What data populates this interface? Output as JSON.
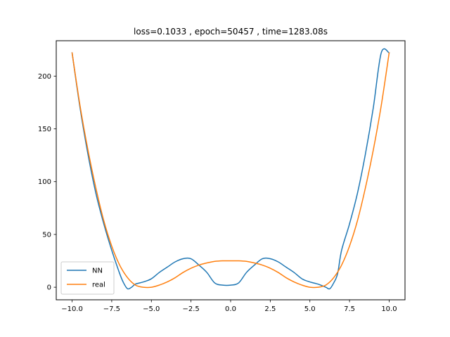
{
  "chart_data": {
    "type": "line",
    "title": "loss=0.1033 , epoch=50457 , time=1283.08s",
    "xlabel": "",
    "ylabel": "",
    "xlim": [
      -11.0,
      11.0
    ],
    "ylim": [
      -11.9,
      233.5
    ],
    "xticks": [
      -10.0,
      -7.5,
      -5.0,
      -2.5,
      0.0,
      2.5,
      5.0,
      7.5,
      10.0
    ],
    "xtick_labels": [
      "−10.0",
      "−7.5",
      "−5.0",
      "−2.5",
      "0.0",
      "2.5",
      "5.0",
      "7.5",
      "10.0"
    ],
    "yticks": [
      0,
      50,
      100,
      150,
      200
    ],
    "ytick_labels": [
      "0",
      "50",
      "100",
      "150",
      "200"
    ],
    "grid": false,
    "legend_position": "lower-left",
    "series": [
      {
        "name": "NN",
        "color": "#1f77b4",
        "x": [
          -10.0,
          -9.5,
          -9.0,
          -8.5,
          -8.0,
          -7.5,
          -7.0,
          -6.75,
          -6.5,
          -6.25,
          -6.0,
          -5.5,
          -5.0,
          -4.5,
          -4.0,
          -3.5,
          -3.0,
          -2.5,
          -2.0,
          -1.5,
          -1.0,
          -0.5,
          0.0,
          0.5,
          1.0,
          1.5,
          2.0,
          2.5,
          3.0,
          3.5,
          4.0,
          4.5,
          5.0,
          5.5,
          6.0,
          6.25,
          6.5,
          6.75,
          7.0,
          7.5,
          8.0,
          8.5,
          9.0,
          9.5,
          10.0
        ],
        "y": [
          222,
          170,
          126,
          89,
          60,
          35,
          13,
          4,
          -1.5,
          0,
          3,
          5,
          8,
          14,
          19,
          24,
          27,
          27,
          21,
          14,
          4,
          2,
          2,
          4,
          14,
          21,
          27,
          27,
          24,
          19,
          14,
          8,
          5,
          3,
          0,
          -1.5,
          4,
          13,
          35,
          60,
          89,
          126,
          170,
          222,
          222
        ]
      },
      {
        "name": "real",
        "color": "#ff7f0e",
        "x": [
          -10.0,
          -9.5,
          -9.0,
          -8.5,
          -8.0,
          -7.5,
          -7.0,
          -6.5,
          -6.0,
          -5.5,
          -5.0,
          -4.5,
          -4.0,
          -3.5,
          -3.0,
          -2.5,
          -2.0,
          -1.5,
          -1.0,
          -0.5,
          0.0,
          0.5,
          1.0,
          1.5,
          2.0,
          2.5,
          3.0,
          3.5,
          4.0,
          4.5,
          5.0,
          5.5,
          6.0,
          6.5,
          7.0,
          7.5,
          8.0,
          8.5,
          9.0,
          9.5,
          10.0
        ],
        "y": [
          222,
          172,
          130,
          94,
          63,
          39,
          21,
          9,
          2,
          0,
          0,
          2,
          5,
          9,
          14,
          18,
          21,
          23,
          24.5,
          25,
          25,
          25,
          24.5,
          23,
          21,
          18,
          14,
          9,
          5,
          2,
          0,
          0,
          2,
          9,
          21,
          39,
          63,
          94,
          130,
          172,
          222
        ]
      }
    ]
  }
}
